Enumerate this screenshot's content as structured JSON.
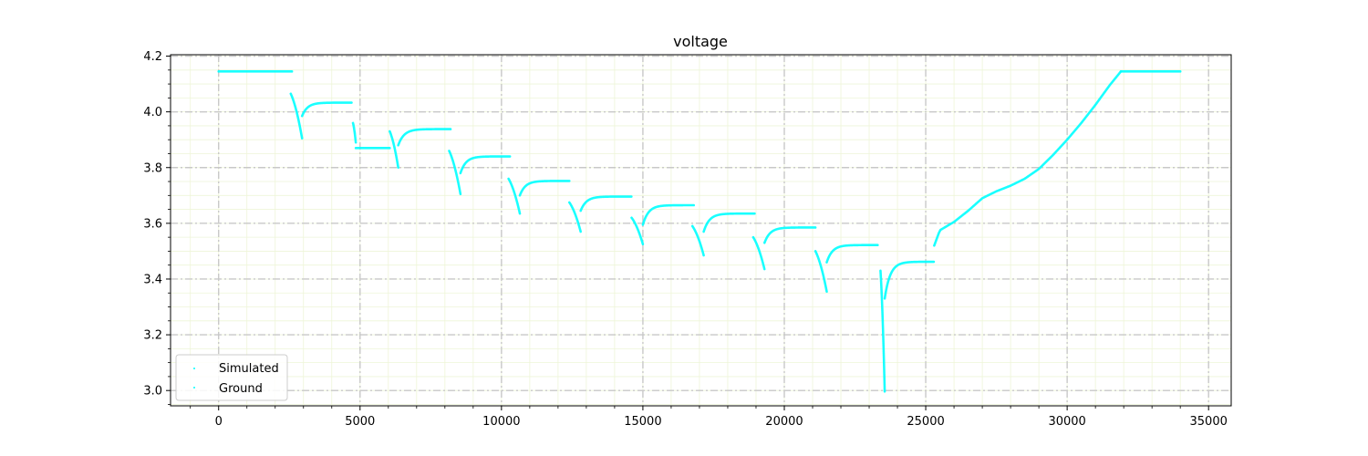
{
  "chart_data": {
    "type": "scatter",
    "title": "voltage",
    "xlabel": "",
    "ylabel": "",
    "xlim": [
      -1700,
      35800
    ],
    "ylim": [
      2.945,
      4.205
    ],
    "x_ticks": [
      0,
      5000,
      10000,
      15000,
      20000,
      25000,
      30000,
      35000
    ],
    "x_tick_labels": [
      "0",
      "5000",
      "10000",
      "15000",
      "20000",
      "25000",
      "30000",
      "35000"
    ],
    "y_ticks": [
      3.0,
      3.2,
      3.4,
      3.6,
      3.8,
      4.0,
      4.2
    ],
    "y_tick_labels": [
      "3.0",
      "3.2",
      "3.4",
      "3.6",
      "3.8",
      "4.0",
      "4.2"
    ],
    "grid": true,
    "legend_position": "lower-left",
    "series": [
      {
        "name": "Simulated",
        "color": "#00ffff",
        "marker": "dot"
      },
      {
        "name": "Ground",
        "color": "#00ffff",
        "marker": "dot"
      }
    ],
    "segments": [
      {
        "kind": "flat",
        "x": [
          0,
          2600
        ],
        "y": [
          4.145,
          4.145
        ]
      },
      {
        "kind": "drop",
        "x": [
          2550,
          2950
        ],
        "y": [
          4.065,
          3.905
        ]
      },
      {
        "kind": "relax",
        "x": [
          2950,
          4700
        ],
        "y": [
          3.985,
          4.033
        ]
      },
      {
        "kind": "drop",
        "x": [
          4750,
          4850
        ],
        "y": [
          3.96,
          3.89
        ]
      },
      {
        "kind": "flat",
        "x": [
          4850,
          6050
        ],
        "y": [
          3.87,
          3.87
        ]
      },
      {
        "kind": "drop",
        "x": [
          6050,
          6350
        ],
        "y": [
          3.93,
          3.8
        ]
      },
      {
        "kind": "relax",
        "x": [
          6350,
          8200
        ],
        "y": [
          3.88,
          3.938
        ]
      },
      {
        "kind": "drop",
        "x": [
          8150,
          8550
        ],
        "y": [
          3.86,
          3.705
        ]
      },
      {
        "kind": "relax",
        "x": [
          8550,
          10300
        ],
        "y": [
          3.78,
          3.84
        ]
      },
      {
        "kind": "drop",
        "x": [
          10250,
          10650
        ],
        "y": [
          3.76,
          3.635
        ]
      },
      {
        "kind": "relax",
        "x": [
          10650,
          12400
        ],
        "y": [
          3.7,
          3.752
        ]
      },
      {
        "kind": "drop",
        "x": [
          12400,
          12800
        ],
        "y": [
          3.675,
          3.57
        ]
      },
      {
        "kind": "relax",
        "x": [
          12800,
          14600
        ],
        "y": [
          3.645,
          3.696
        ]
      },
      {
        "kind": "drop",
        "x": [
          14600,
          15000
        ],
        "y": [
          3.62,
          3.525
        ]
      },
      {
        "kind": "relax",
        "x": [
          15000,
          16800
        ],
        "y": [
          3.595,
          3.665
        ]
      },
      {
        "kind": "drop",
        "x": [
          16750,
          17150
        ],
        "y": [
          3.59,
          3.485
        ]
      },
      {
        "kind": "relax",
        "x": [
          17150,
          18950
        ],
        "y": [
          3.57,
          3.635
        ]
      },
      {
        "kind": "drop",
        "x": [
          18900,
          19300
        ],
        "y": [
          3.55,
          3.435
        ]
      },
      {
        "kind": "relax",
        "x": [
          19300,
          21100
        ],
        "y": [
          3.53,
          3.585
        ]
      },
      {
        "kind": "drop",
        "x": [
          21100,
          21500
        ],
        "y": [
          3.5,
          3.355
        ]
      },
      {
        "kind": "relax",
        "x": [
          21500,
          23300
        ],
        "y": [
          3.46,
          3.522
        ]
      },
      {
        "kind": "drop",
        "x": [
          23400,
          23550
        ],
        "y": [
          3.43,
          2.995
        ]
      },
      {
        "kind": "relax",
        "x": [
          23550,
          25300
        ],
        "y": [
          3.33,
          3.462
        ]
      },
      {
        "kind": "charge",
        "x": [
          25300,
          31900
        ],
        "y": [
          3.52,
          4.145
        ]
      },
      {
        "kind": "flat",
        "x": [
          31900,
          34000
        ],
        "y": [
          4.145,
          4.145
        ]
      }
    ],
    "charge_curve": [
      [
        25300,
        3.52
      ],
      [
        25500,
        3.575
      ],
      [
        26000,
        3.605
      ],
      [
        26500,
        3.645
      ],
      [
        27000,
        3.69
      ],
      [
        27500,
        3.715
      ],
      [
        28000,
        3.735
      ],
      [
        28500,
        3.76
      ],
      [
        29000,
        3.795
      ],
      [
        29500,
        3.845
      ],
      [
        30000,
        3.9
      ],
      [
        30500,
        3.96
      ],
      [
        31000,
        4.025
      ],
      [
        31500,
        4.095
      ],
      [
        31900,
        4.145
      ]
    ]
  }
}
